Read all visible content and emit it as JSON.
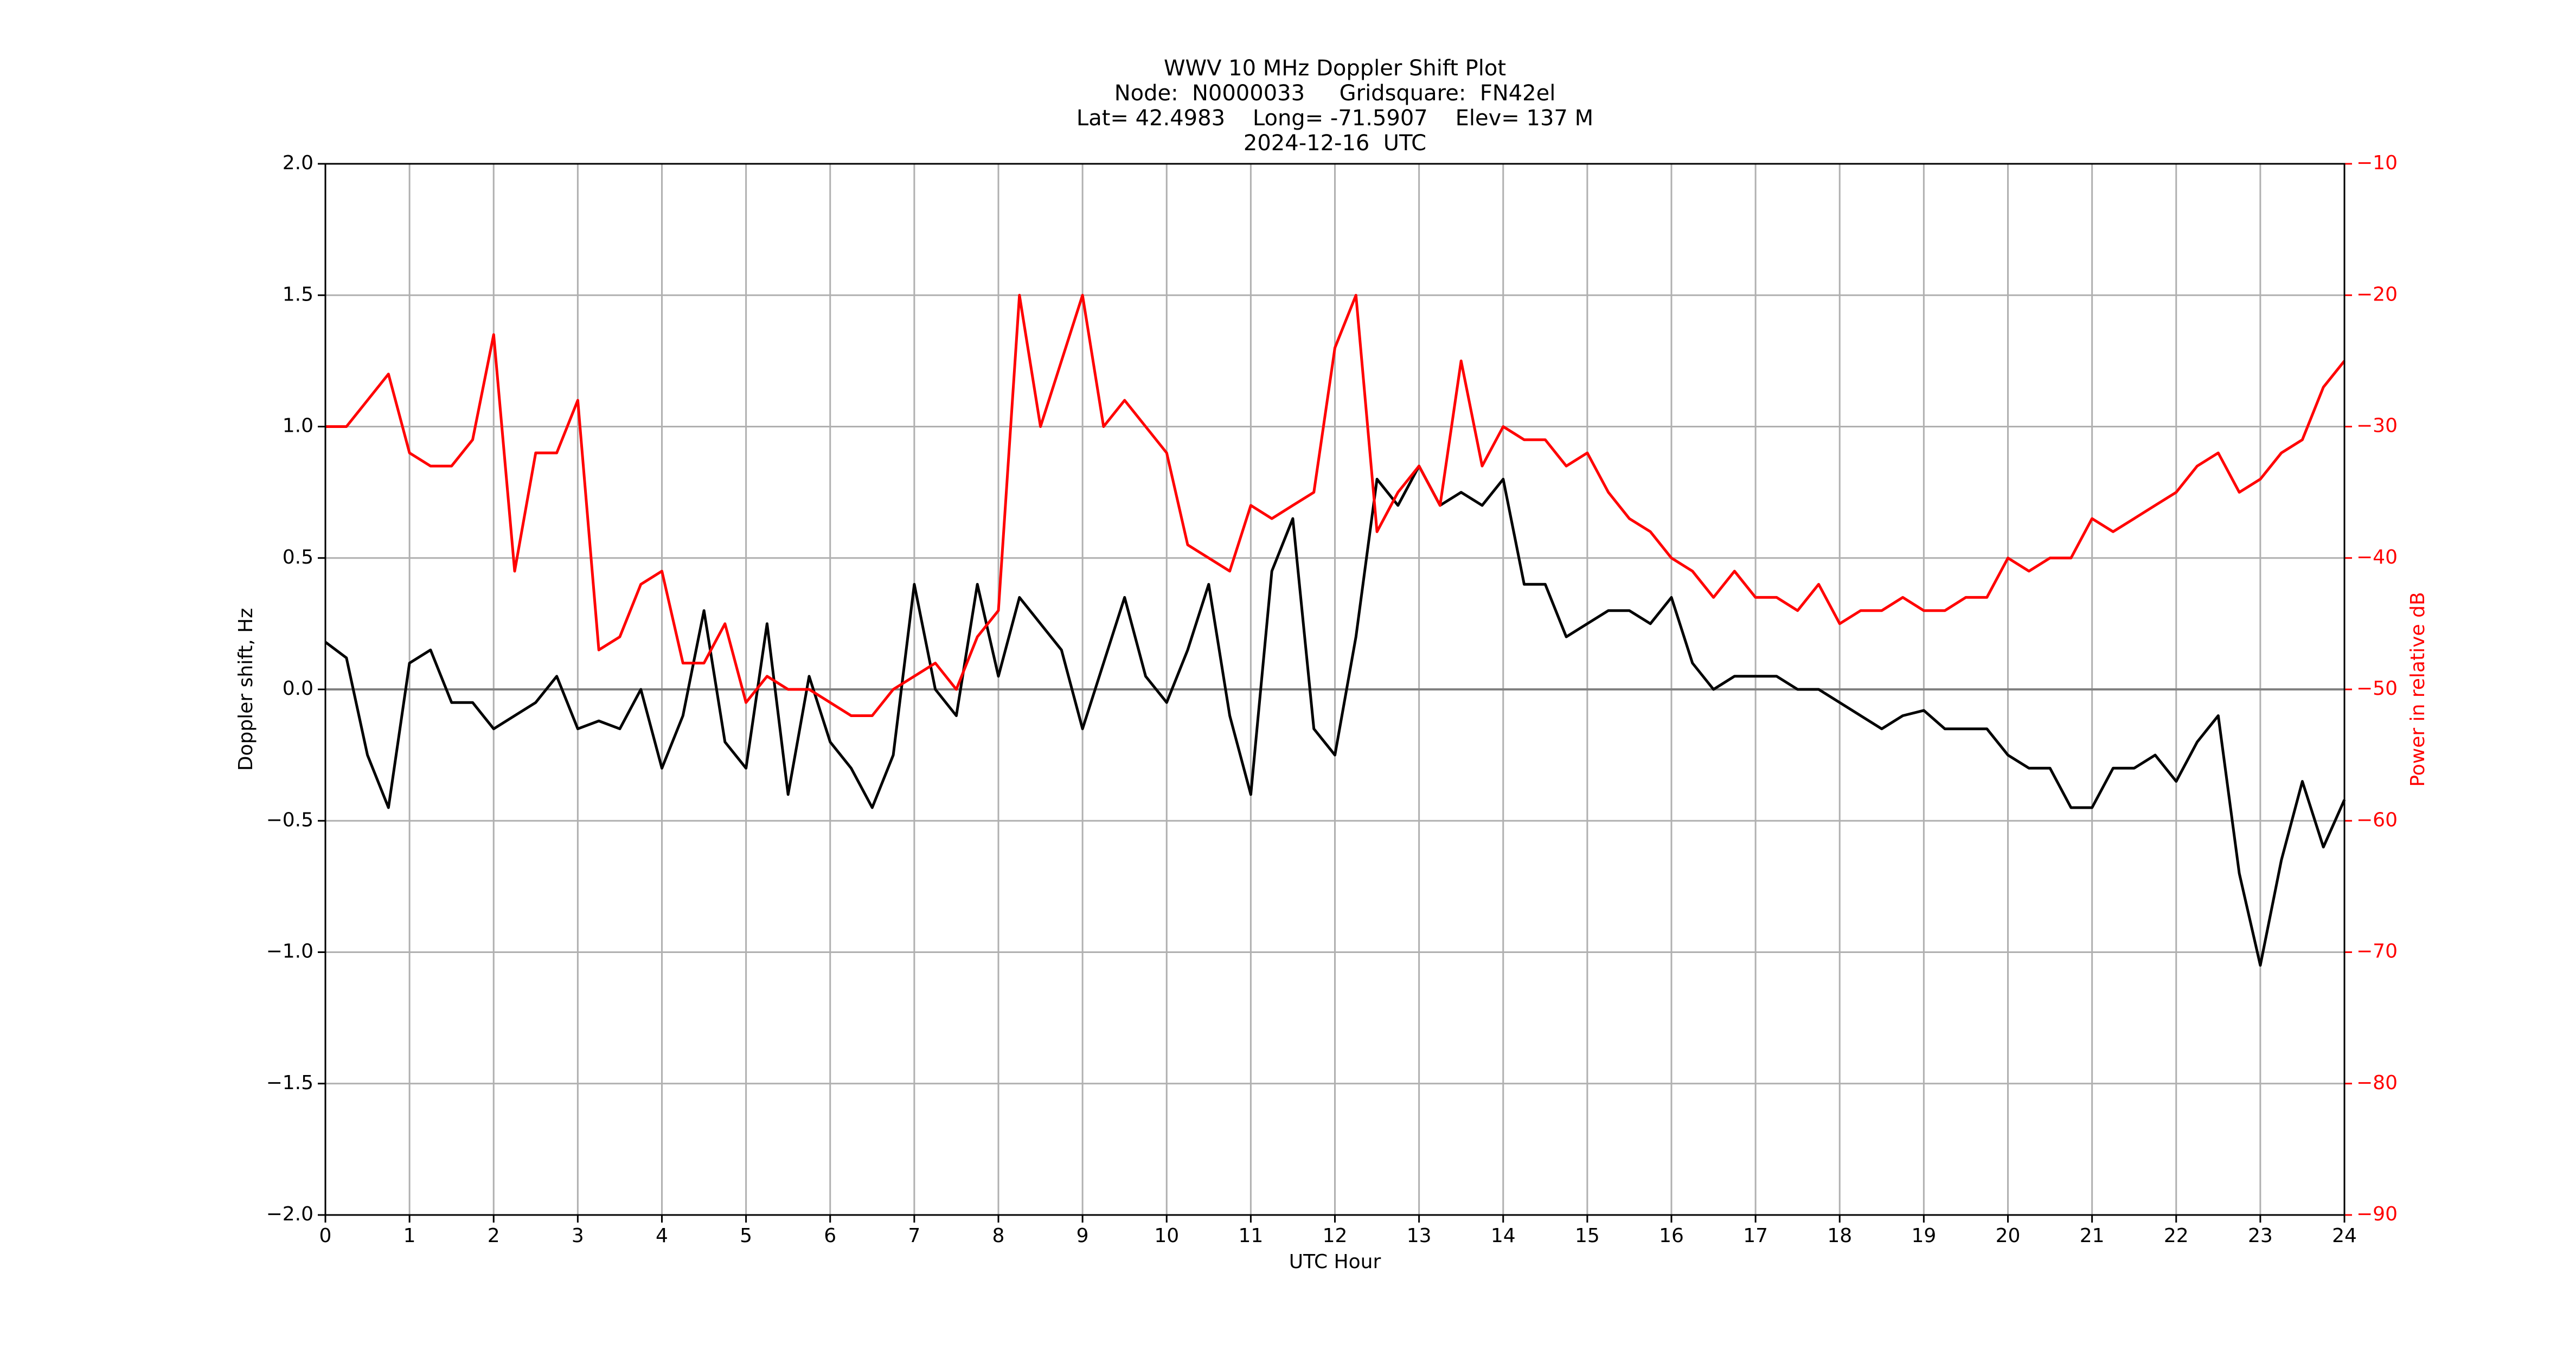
{
  "chart_data": {
    "type": "line",
    "title": [
      "WWV 10 MHz Doppler Shift Plot",
      "Node:  N0000033     Gridsquare:  FN42el",
      "Lat= 42.4983    Long= -71.5907    Elev= 137 M",
      "2024-12-16  UTC"
    ],
    "xlabel": "UTC Hour",
    "ylabel": "Doppler shift, Hz",
    "y2label": "Power in relative dB",
    "x": [
      0,
      0.25,
      0.5,
      0.75,
      1,
      1.25,
      1.5,
      1.75,
      2,
      2.25,
      2.5,
      2.75,
      3,
      3.25,
      3.5,
      3.75,
      4,
      4.25,
      4.5,
      4.75,
      5,
      5.25,
      5.5,
      5.75,
      6,
      6.25,
      6.5,
      6.75,
      7,
      7.25,
      7.5,
      7.75,
      8,
      8.25,
      8.5,
      8.75,
      9,
      9.25,
      9.5,
      9.75,
      10,
      10.25,
      10.5,
      10.75,
      11,
      11.25,
      11.5,
      11.75,
      12,
      12.25,
      12.5,
      12.75,
      13,
      13.25,
      13.5,
      13.75,
      14,
      14.25,
      14.5,
      14.75,
      15,
      15.25,
      15.5,
      15.75,
      16,
      16.25,
      16.5,
      16.75,
      17,
      17.25,
      17.5,
      17.75,
      18,
      18.25,
      18.5,
      18.75,
      19,
      19.25,
      19.5,
      19.75,
      20,
      20.25,
      20.5,
      20.75,
      21,
      21.25,
      21.5,
      21.75,
      22,
      22.25,
      22.5,
      22.75,
      23,
      23.25,
      23.5,
      23.75,
      24
    ],
    "series": [
      {
        "name": "Doppler shift",
        "color": "#000000",
        "axis": "y",
        "values": [
          0.18,
          0.12,
          -0.25,
          -0.45,
          0.1,
          0.15,
          -0.05,
          -0.05,
          -0.15,
          -0.1,
          -0.05,
          0.05,
          -0.15,
          -0.12,
          -0.15,
          0.0,
          -0.3,
          -0.1,
          0.3,
          -0.2,
          -0.3,
          0.25,
          -0.4,
          0.05,
          -0.2,
          -0.3,
          -0.45,
          -0.25,
          0.4,
          0.0,
          -0.1,
          0.4,
          0.05,
          0.35,
          0.25,
          0.15,
          -0.15,
          0.1,
          0.35,
          0.05,
          -0.05,
          0.15,
          0.4,
          -0.1,
          -0.4,
          0.45,
          0.65,
          -0.15,
          -0.25,
          0.2,
          0.8,
          0.7,
          0.85,
          0.7,
          0.75,
          0.7,
          0.8,
          0.4,
          0.4,
          0.2,
          0.25,
          0.3,
          0.3,
          0.25,
          0.35,
          0.1,
          0.0,
          0.05,
          0.05,
          0.05,
          0.0,
          0.0,
          -0.05,
          -0.1,
          -0.15,
          -0.1,
          -0.08,
          -0.15,
          -0.15,
          -0.15,
          -0.25,
          -0.3,
          -0.3,
          -0.45,
          -0.45,
          -0.3,
          -0.3,
          -0.25,
          -0.35,
          -0.2,
          -0.1,
          -0.7,
          -1.05,
          -0.65,
          -0.35,
          -0.6,
          -0.42
        ]
      },
      {
        "name": "Power",
        "color": "#ff0000",
        "axis": "y2",
        "values": [
          -30,
          -30,
          -28,
          -26,
          -32,
          -33,
          -33,
          -31,
          -23,
          -41,
          -32,
          -32,
          -28,
          -47,
          -46,
          -42,
          -41,
          -48,
          -48,
          -45,
          -51,
          -49,
          -50,
          -50,
          -51,
          -52,
          -52,
          -50,
          -49,
          -48,
          -50,
          -46,
          -44,
          -20,
          -30,
          -25,
          -20,
          -30,
          -28,
          -30,
          -32,
          -39,
          -40,
          -41,
          -36,
          -37,
          -36,
          -35,
          -24,
          -20,
          -38,
          -35,
          -33,
          -36,
          -25,
          -33,
          -30,
          -31,
          -31,
          -33,
          -32,
          -35,
          -37,
          -38,
          -40,
          -41,
          -43,
          -41,
          -43,
          -43,
          -44,
          -42,
          -45,
          -44,
          -44,
          -43,
          -44,
          -44,
          -43,
          -43,
          -40,
          -41,
          -40,
          -40,
          -37,
          -38,
          -37,
          -36,
          -35,
          -33,
          -32,
          -35,
          -34,
          -32,
          -31,
          -27,
          -25
        ]
      }
    ],
    "xlim": [
      0,
      24
    ],
    "xticks": [
      0,
      1,
      2,
      3,
      4,
      5,
      6,
      7,
      8,
      9,
      10,
      11,
      12,
      13,
      14,
      15,
      16,
      17,
      18,
      19,
      20,
      21,
      22,
      23,
      24
    ],
    "ylim": [
      -2,
      2
    ],
    "yticks": [
      {
        "value": -2,
        "label": "−2.0"
      },
      {
        "value": -1.5,
        "label": "−1.5"
      },
      {
        "value": -1,
        "label": "−1.0"
      },
      {
        "value": -0.5,
        "label": "−0.5"
      },
      {
        "value": 0,
        "label": "0.0"
      },
      0.5,
      {
        "value": 1,
        "label": "1.0"
      },
      1.5,
      {
        "value": 2,
        "label": "2.0"
      }
    ],
    "y2lim": [
      -90,
      -10
    ],
    "y2ticks": [
      {
        "value": -90,
        "label": "−90"
      },
      {
        "value": -80,
        "label": "−80"
      },
      {
        "value": -70,
        "label": "−70"
      },
      {
        "value": -60,
        "label": "−60"
      },
      {
        "value": -50,
        "label": "−50"
      },
      {
        "value": -40,
        "label": "−40"
      },
      {
        "value": -30,
        "label": "−30"
      },
      {
        "value": -20,
        "label": "−20"
      },
      {
        "value": -10,
        "label": "−10"
      }
    ],
    "y2color": "#ff0000",
    "grid": true,
    "axhline": 0
  }
}
